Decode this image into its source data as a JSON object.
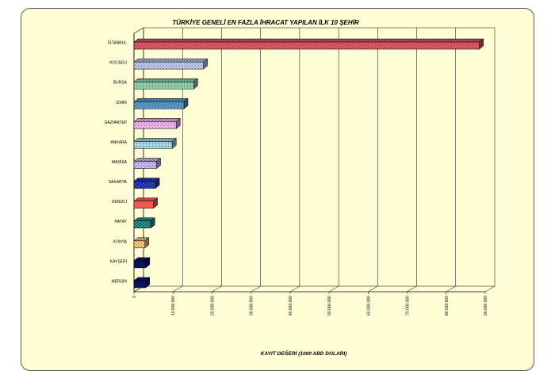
{
  "chart_data": {
    "type": "bar",
    "orientation": "horizontal",
    "title": "TÜRKİYE GENELİ EN FAZLA İHRACAT YAPILAN İLK 10 ŞEHİR",
    "xlabel": "KAYIT DEĞERİ (1000 ABD DOLARI)",
    "ylabel": "",
    "categories": [
      "İSTANBUL",
      "KOCAELİ",
      "BURSA",
      "İZMİR",
      "GAZİANTEP",
      "ANKARA",
      "MANİSA",
      "SAKARYA",
      "DENİZLİ",
      "HATAY",
      "KONYA",
      "KAYSERİ",
      "MERSİN"
    ],
    "values": [
      88500000,
      17800000,
      15300000,
      12800000,
      10800000,
      9800000,
      5800000,
      5500000,
      5000000,
      4300000,
      2800000,
      3000000,
      3000000
    ],
    "colors": [
      "#f06070",
      "#b8c8ec",
      "#90d4b0",
      "#5fa8d8",
      "#f4b0f0",
      "#a8dcec",
      "#c8b8f0",
      "#2848e0",
      "#f05858",
      "#30a8a0",
      "#f8c878",
      "#101878",
      "#101878"
    ],
    "patterns": [
      "diagonal",
      "dots",
      "grid",
      "diagonal",
      "dots",
      "grid",
      "dots",
      "checker",
      "solid",
      "checker",
      "dots",
      "checker",
      "checker"
    ],
    "xlim": [
      0,
      90000000
    ],
    "xticks": [
      "0",
      "10.000.000",
      "20.000.000",
      "30.000.000",
      "40.000.000",
      "50.000.000",
      "60.000.000",
      "70.000.000",
      "80.000.000",
      "90.000.000"
    ],
    "grid": true,
    "legend": "none"
  }
}
